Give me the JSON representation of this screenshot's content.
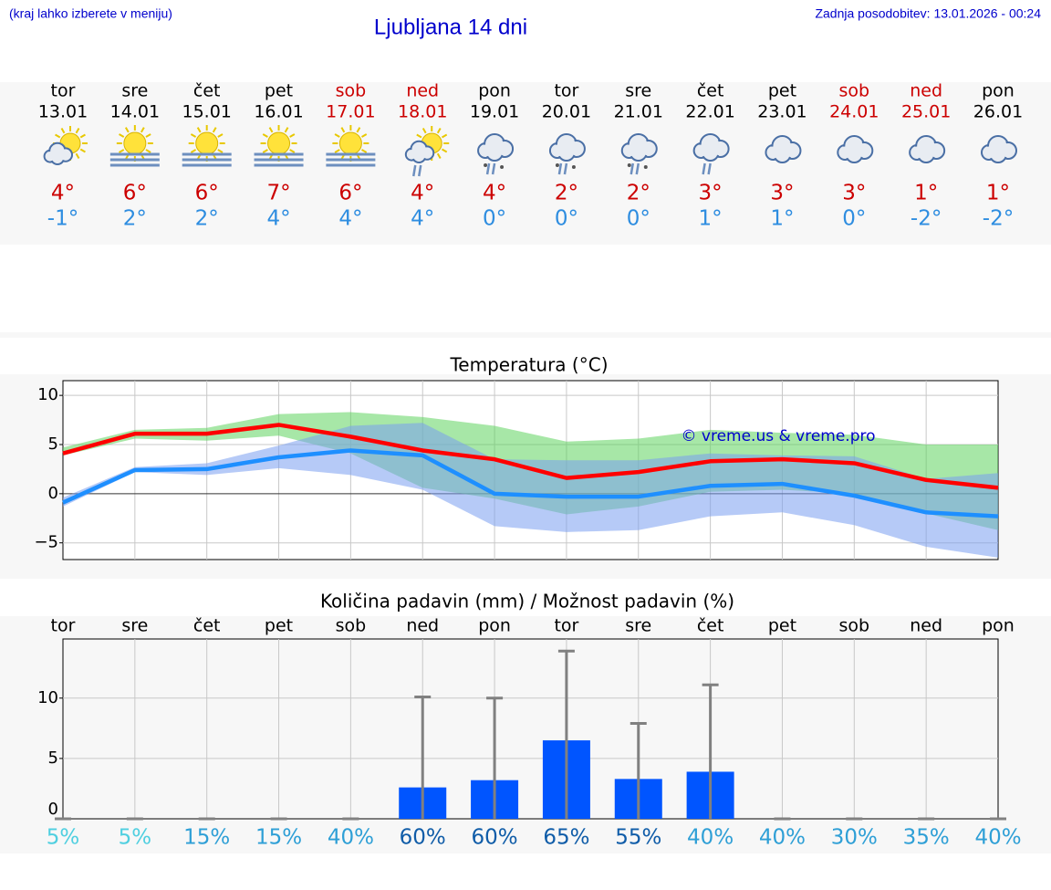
{
  "header": {
    "note": "(kraj lahko izberete v meniju)",
    "title": "Ljubljana 14 dni",
    "updated": "Zadnja posodobitev: 13.01.2026 - 00:24"
  },
  "days": [
    {
      "weekday": "tor",
      "date": "13.01",
      "high": "4°",
      "low": "-1°",
      "weekend": false,
      "icon": "sun-cloud"
    },
    {
      "weekday": "sre",
      "date": "14.01",
      "high": "6°",
      "low": "2°",
      "weekend": false,
      "icon": "sun-fog"
    },
    {
      "weekday": "čet",
      "date": "15.01",
      "high": "6°",
      "low": "2°",
      "weekend": false,
      "icon": "sun-fog"
    },
    {
      "weekday": "pet",
      "date": "16.01",
      "high": "7°",
      "low": "4°",
      "weekend": false,
      "icon": "sun-fog"
    },
    {
      "weekday": "sob",
      "date": "17.01",
      "high": "6°",
      "low": "4°",
      "weekend": true,
      "icon": "sun-fog"
    },
    {
      "weekday": "ned",
      "date": "18.01",
      "high": "4°",
      "low": "4°",
      "weekend": true,
      "icon": "sun-cloud-rain"
    },
    {
      "weekday": "pon",
      "date": "19.01",
      "high": "4°",
      "low": "0°",
      "weekend": false,
      "icon": "cloud-sleet"
    },
    {
      "weekday": "tor",
      "date": "20.01",
      "high": "2°",
      "low": "0°",
      "weekend": false,
      "icon": "cloud-sleet"
    },
    {
      "weekday": "sre",
      "date": "21.01",
      "high": "2°",
      "low": "0°",
      "weekend": false,
      "icon": "cloud-sleet"
    },
    {
      "weekday": "čet",
      "date": "22.01",
      "high": "3°",
      "low": "1°",
      "weekend": false,
      "icon": "cloud-rain"
    },
    {
      "weekday": "pet",
      "date": "23.01",
      "high": "3°",
      "low": "1°",
      "weekend": false,
      "icon": "cloud"
    },
    {
      "weekday": "sob",
      "date": "24.01",
      "high": "3°",
      "low": "0°",
      "weekend": true,
      "icon": "cloud"
    },
    {
      "weekday": "ned",
      "date": "25.01",
      "high": "1°",
      "low": "-2°",
      "weekend": true,
      "icon": "cloud"
    },
    {
      "weekday": "pon",
      "date": "26.01",
      "high": "1°",
      "low": "-2°",
      "weekend": false,
      "icon": "cloud"
    }
  ],
  "chart_data": [
    {
      "type": "line",
      "title": "Temperatura (°C)",
      "ylim": [
        -6.7,
        11.5
      ],
      "yticks": [
        {
          "value": -5,
          "label": "−5"
        },
        0,
        5,
        10
      ],
      "grid": true,
      "series": [
        {
          "color": "#ff0000",
          "values": [
            4.1,
            6.1,
            6.1,
            7.0,
            5.8,
            4.4,
            3.5,
            1.6,
            2.2,
            3.3,
            3.5,
            3.1,
            1.4,
            0.6
          ]
        },
        {
          "color": "#1e8fff",
          "values": [
            -0.9,
            2.4,
            2.5,
            3.7,
            4.4,
            3.9,
            0,
            -0.3,
            -0.3,
            0.8,
            1.0,
            -0.2,
            -1.9,
            -2.3
          ]
        }
      ],
      "bands": [
        {
          "color": "#5fd35f",
          "upper": [
            4.7,
            6.5,
            6.7,
            8.1,
            8.3,
            7.8,
            6.9,
            5.3,
            5.6,
            6.5,
            6.2,
            6.0,
            5.0,
            5.0
          ],
          "lower": [
            3.9,
            5.6,
            5.4,
            5.9,
            4.1,
            0.6,
            -0.5,
            -2.1,
            -1.3,
            0.2,
            0.4,
            0,
            -2.0,
            -3.7
          ]
        },
        {
          "color": "#7a9ff0",
          "upper": [
            -0.4,
            2.7,
            3.1,
            4.9,
            6.9,
            7.2,
            3.5,
            3.4,
            3.4,
            4.1,
            3.9,
            3.8,
            1.5,
            2.1
          ],
          "lower": [
            -1.3,
            2.2,
            1.9,
            2.6,
            1.9,
            0.4,
            -3.3,
            -3.9,
            -3.7,
            -2.3,
            -1.9,
            -3.2,
            -5.4,
            -6.5
          ]
        }
      ],
      "annotation": "© vreme.us & vreme.pro",
      "annotation_color": "#0000cc"
    },
    {
      "type": "bar",
      "title": "Količina padavin (mm) / Možnost padavin (%)",
      "categories": [
        "tor",
        "sre",
        "čet",
        "pet",
        "sob",
        "ned",
        "pon",
        "tor",
        "sre",
        "čet",
        "pet",
        "sob",
        "ned",
        "pon"
      ],
      "values": [
        0,
        0,
        0,
        0,
        0,
        2.6,
        3.2,
        6.5,
        3.3,
        3.9,
        0,
        0,
        0,
        0
      ],
      "upper": [
        0,
        0,
        0,
        0,
        0,
        10.1,
        10.0,
        13.9,
        7.9,
        11.1,
        0,
        0,
        0,
        0
      ],
      "color": "#0055ff",
      "error_color": "#808080",
      "ylim": [
        0,
        14.9
      ],
      "yticks": [
        0,
        5,
        10
      ],
      "grid": true,
      "probability": {
        "values": [
          5,
          5,
          15,
          15,
          40,
          60,
          60,
          65,
          55,
          40,
          40,
          30,
          35,
          40
        ],
        "value_labels": [
          "5%",
          "5%",
          "15%",
          "15%",
          "40%",
          "60%",
          "60%",
          "65%",
          "55%",
          "40%",
          "40%",
          "30%",
          "35%",
          "40%"
        ],
        "colors": [
          "#4fcfe0",
          "#4fcfe0",
          "#2e9fd6",
          "#2e9fd6",
          "#2e9fd6",
          "#0f5ca8",
          "#0f5ca8",
          "#0f5ca8",
          "#0f5ca8",
          "#2e9fd6",
          "#2e9fd6",
          "#2e9fd6",
          "#2e9fd6",
          "#2e9fd6"
        ]
      }
    }
  ]
}
